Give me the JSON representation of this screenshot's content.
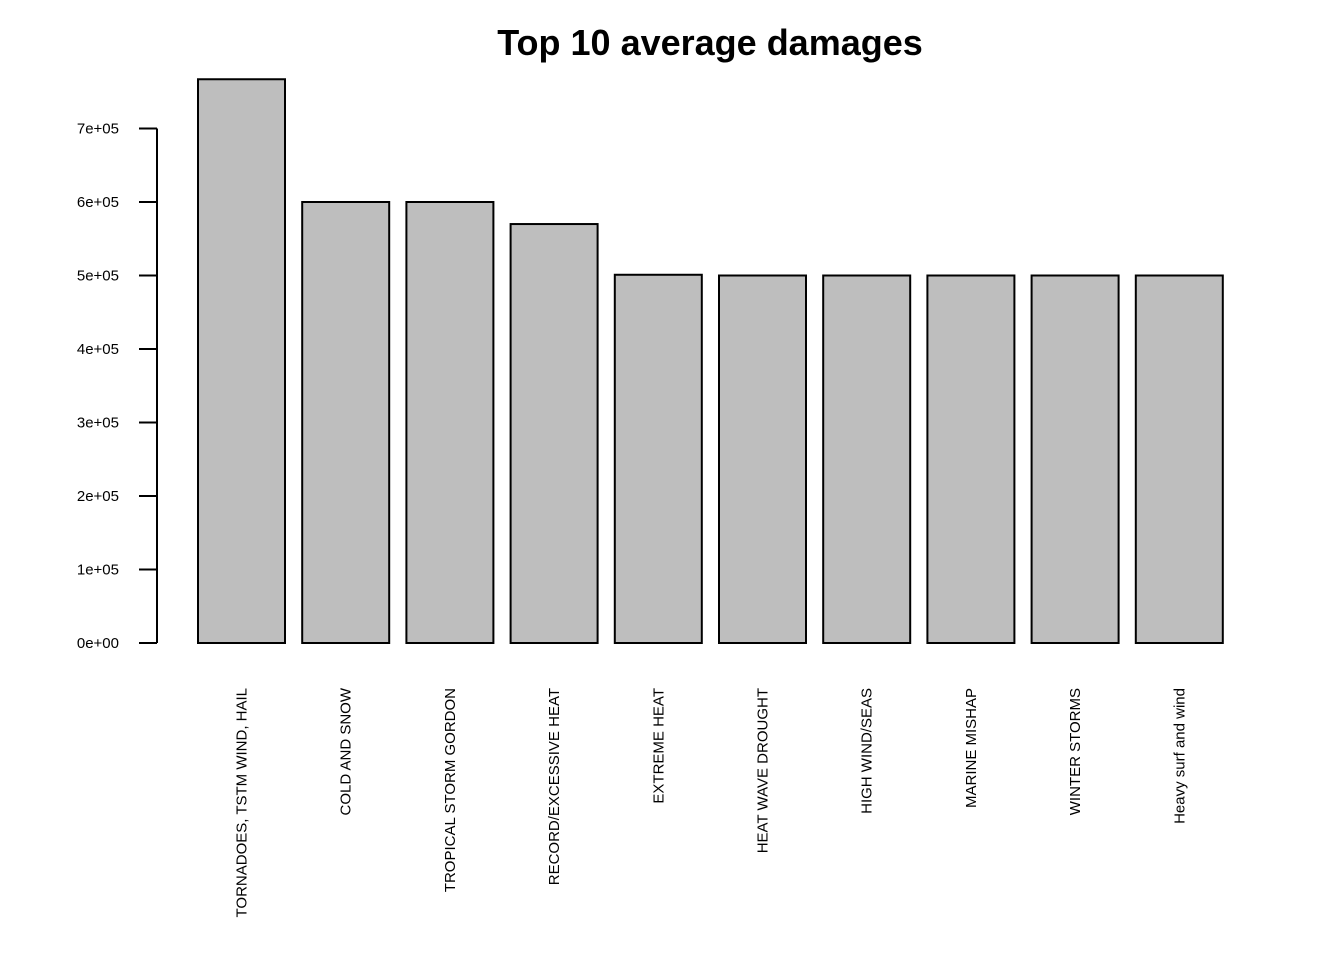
{
  "chart_data": {
    "type": "bar",
    "title": "Top 10 average damages",
    "xlabel": "",
    "ylabel": "",
    "categories": [
      "TORNADOES, TSTM WIND, HAIL",
      "COLD AND SNOW",
      "TROPICAL STORM GORDON",
      "RECORD/EXCESSIVE HEAT",
      "EXTREME HEAT",
      "HEAT WAVE DROUGHT",
      "HIGH WIND/SEAS",
      "MARINE MISHAP",
      "WINTER STORMS",
      "Heavy surf and wind"
    ],
    "values": [
      767000,
      600000,
      600000,
      570000,
      501000,
      500000,
      500000,
      500000,
      500000,
      500000
    ],
    "ylim": [
      0,
      770000
    ],
    "yticks": [
      0,
      100000,
      200000,
      300000,
      400000,
      500000,
      600000,
      700000
    ],
    "ytick_labels": [
      "0e+00",
      "1e+05",
      "2e+05",
      "3e+05",
      "4e+05",
      "5e+05",
      "6e+05",
      "7e+05"
    ],
    "bar_color": "#bebebe",
    "edge_color": "#000000",
    "grid": false,
    "legend": "none"
  }
}
